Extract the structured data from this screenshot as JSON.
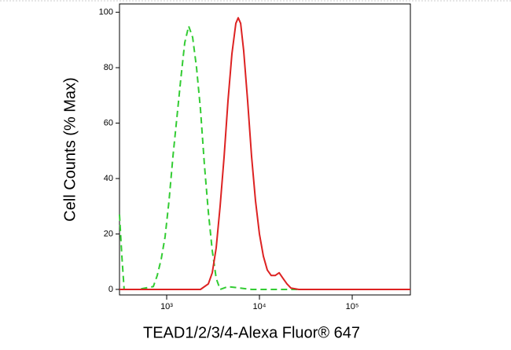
{
  "chart_data": {
    "type": "line",
    "x_label": "TEAD1/2/3/4-Alexa Fluor® 647",
    "y_label": "Cell Counts (% Max)",
    "xscale": "log",
    "xlim": [
      310,
      423600
    ],
    "ylim": [
      -2,
      103
    ],
    "xticks": [
      {
        "value": 1000,
        "label": "10³"
      },
      {
        "value": 10000,
        "label": "10⁴"
      },
      {
        "value": 100000,
        "label": "10⁵"
      }
    ],
    "yticks": [
      0,
      20,
      40,
      60,
      80,
      100
    ],
    "series": [
      {
        "color": "#33cc33",
        "dashed": true,
        "x": [
          310,
          329,
          348,
          485,
          718,
          791,
          873,
          962,
          1060,
          1169,
          1288,
          1421,
          1566,
          1727,
          1904,
          2099,
          2314,
          2551,
          2812,
          3101,
          3419,
          3769,
          4581,
          8226,
          423600
        ],
        "values": [
          27,
          12,
          0,
          0,
          1,
          5,
          11,
          19,
          32,
          48,
          62,
          76,
          89,
          95,
          91,
          80,
          65,
          45,
          28,
          14,
          4,
          0,
          1,
          0,
          0
        ]
      },
      {
        "color": "#dd2222",
        "dashed": false,
        "x": [
          310,
          2314,
          2812,
          3101,
          3419,
          3769,
          4159,
          4581,
          5046,
          5565,
          5902,
          6266,
          6771,
          7464,
          8226,
          9073,
          10000,
          11020,
          12160,
          13400,
          14770,
          16300,
          17950,
          19800,
          21830,
          26540,
          423600
        ],
        "values": [
          0,
          0,
          2,
          6,
          15,
          30,
          48,
          68,
          85,
          96,
          98,
          96,
          86,
          68,
          48,
          32,
          20,
          12,
          7,
          5,
          5,
          6,
          4,
          2,
          0.5,
          0,
          0
        ]
      }
    ]
  }
}
